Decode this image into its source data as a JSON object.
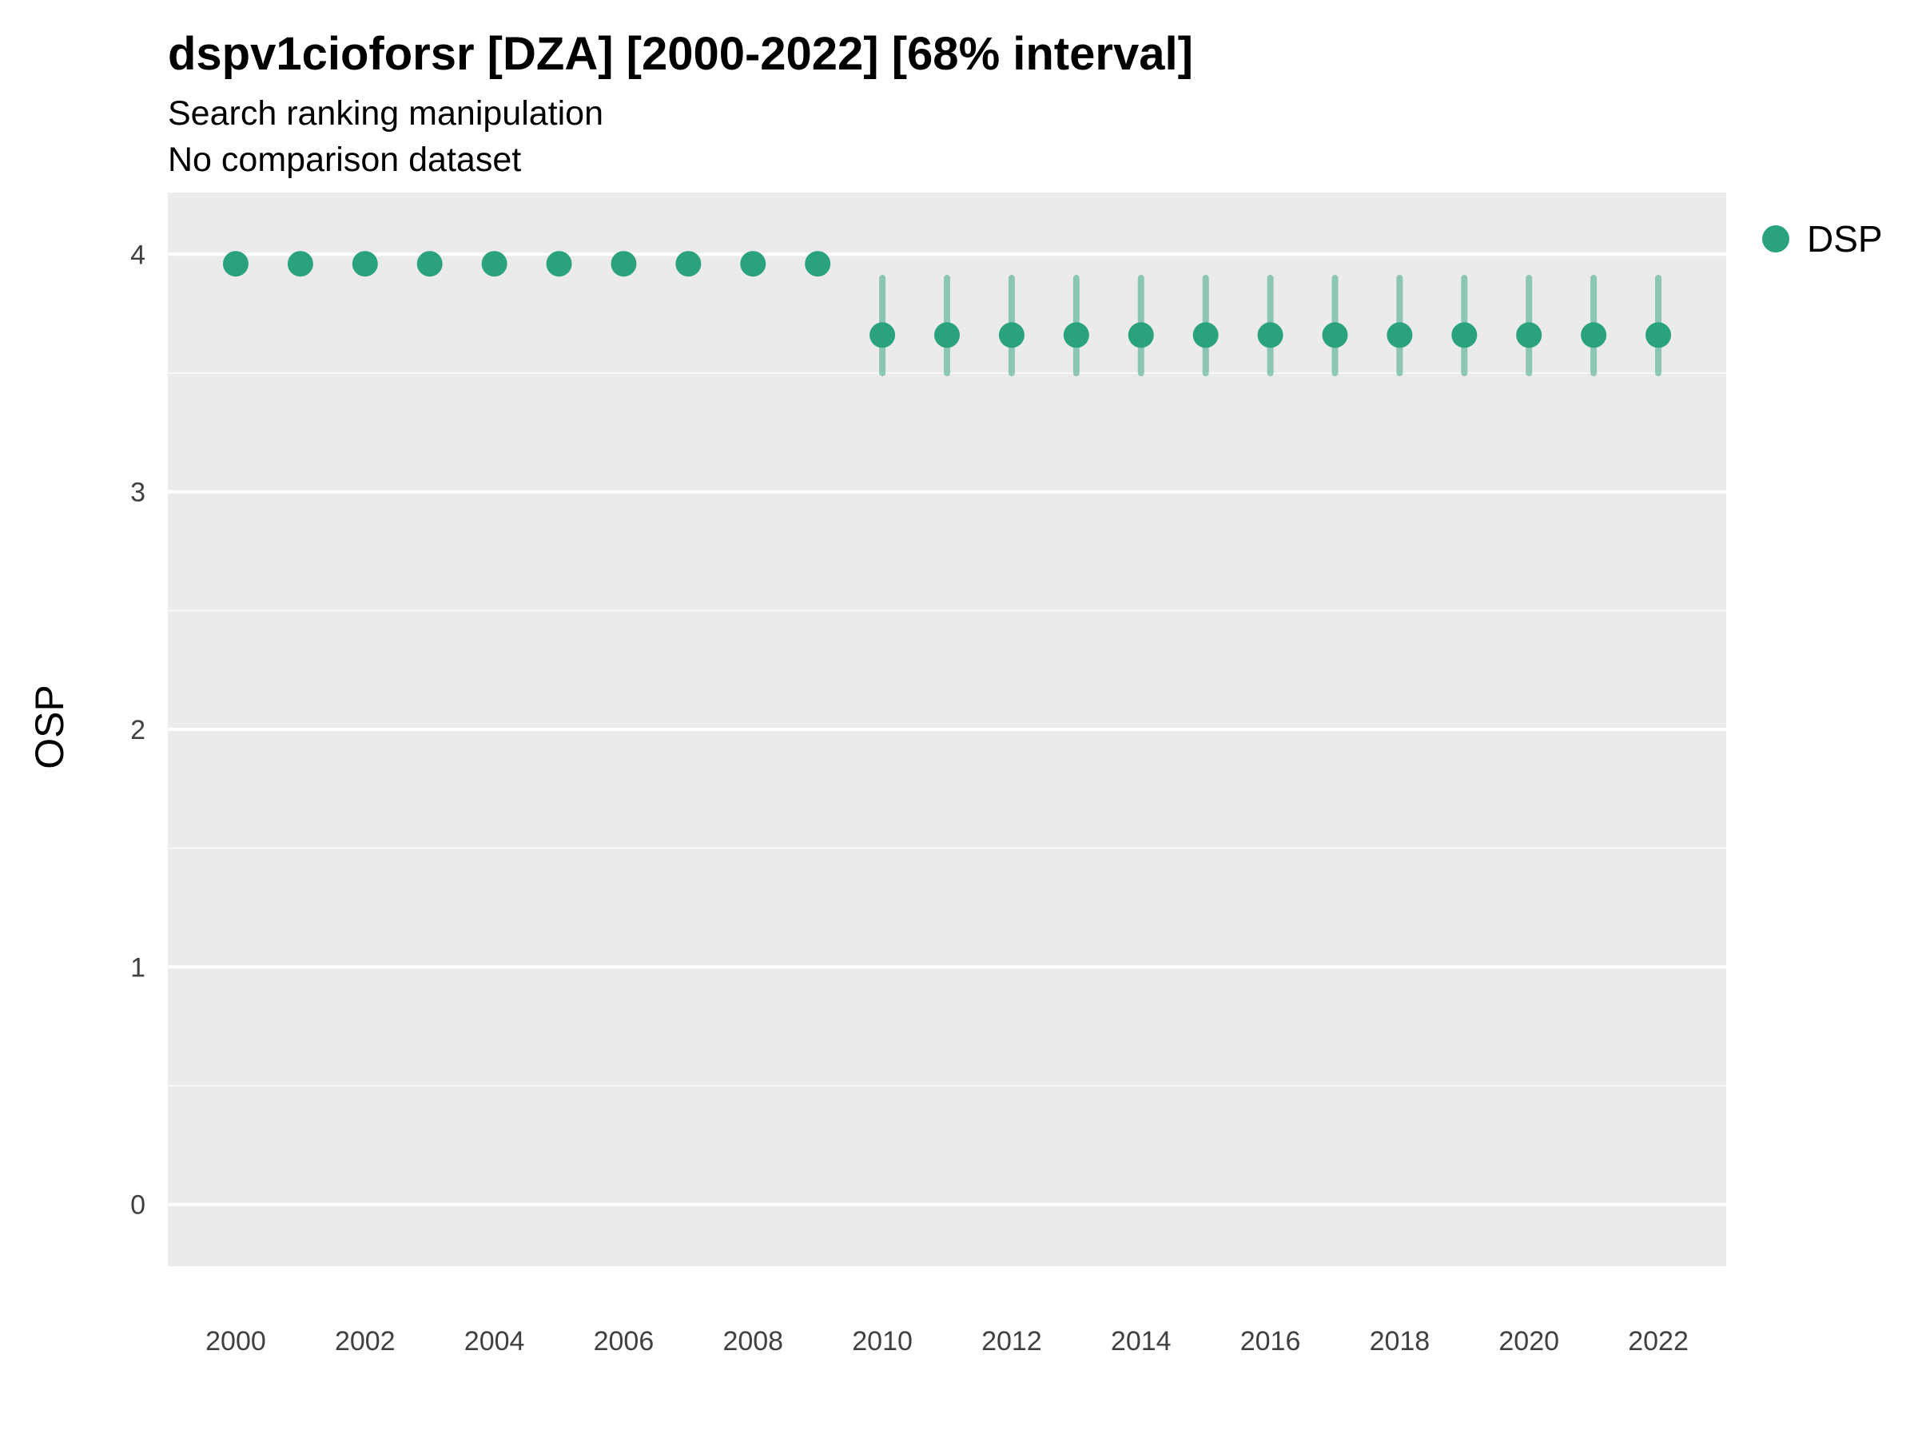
{
  "header": {
    "title": "dspv1cioforsr [DZA] [2000-2022] [68% interval]",
    "subtitle": "Search ranking manipulation",
    "note": "No comparison dataset"
  },
  "legend": {
    "items": [
      {
        "label": "DSP",
        "color": "#2BA27E"
      }
    ]
  },
  "colors": {
    "panel_background": "#EBEBEB",
    "gridline": "#FFFFFF",
    "point": "#2BA27E",
    "interval": "rgba(43,162,126,0.5)",
    "tick_label": "#404040"
  },
  "chart_data": {
    "type": "scatter",
    "title": "dspv1cioforsr [DZA] [2000-2022] [68% interval]",
    "subtitle": "Search ranking manipulation",
    "note": "No comparison dataset",
    "xlabel": "",
    "ylabel": "OSP",
    "interval_label": "68% interval",
    "legend_position": "right-top",
    "grid": "horizontal",
    "ylim": [
      -0.26,
      4.26
    ],
    "xlim": [
      1998.95,
      2023.05
    ],
    "y_ticks": [
      0,
      1,
      2,
      3,
      4
    ],
    "x_ticks": [
      2000,
      2002,
      2004,
      2006,
      2008,
      2010,
      2012,
      2014,
      2016,
      2018,
      2020,
      2022
    ],
    "series": [
      {
        "name": "DSP",
        "color": "#2BA27E",
        "interval_color": "rgba(43,162,126,0.5)",
        "points": [
          {
            "x": 2000,
            "y": 3.96
          },
          {
            "x": 2001,
            "y": 3.96
          },
          {
            "x": 2002,
            "y": 3.96
          },
          {
            "x": 2003,
            "y": 3.96
          },
          {
            "x": 2004,
            "y": 3.96
          },
          {
            "x": 2005,
            "y": 3.96
          },
          {
            "x": 2006,
            "y": 3.96
          },
          {
            "x": 2007,
            "y": 3.96
          },
          {
            "x": 2008,
            "y": 3.96
          },
          {
            "x": 2009,
            "y": 3.96
          },
          {
            "x": 2010,
            "y": 3.66,
            "lo": 3.5,
            "hi": 3.9
          },
          {
            "x": 2011,
            "y": 3.66,
            "lo": 3.5,
            "hi": 3.9
          },
          {
            "x": 2012,
            "y": 3.66,
            "lo": 3.5,
            "hi": 3.9
          },
          {
            "x": 2013,
            "y": 3.66,
            "lo": 3.5,
            "hi": 3.9
          },
          {
            "x": 2014,
            "y": 3.66,
            "lo": 3.5,
            "hi": 3.9
          },
          {
            "x": 2015,
            "y": 3.66,
            "lo": 3.5,
            "hi": 3.9
          },
          {
            "x": 2016,
            "y": 3.66,
            "lo": 3.5,
            "hi": 3.9
          },
          {
            "x": 2017,
            "y": 3.66,
            "lo": 3.5,
            "hi": 3.9
          },
          {
            "x": 2018,
            "y": 3.66,
            "lo": 3.5,
            "hi": 3.9
          },
          {
            "x": 2019,
            "y": 3.66,
            "lo": 3.5,
            "hi": 3.9
          },
          {
            "x": 2020,
            "y": 3.66,
            "lo": 3.5,
            "hi": 3.9
          },
          {
            "x": 2021,
            "y": 3.66,
            "lo": 3.5,
            "hi": 3.9
          },
          {
            "x": 2022,
            "y": 3.66,
            "lo": 3.5,
            "hi": 3.9
          }
        ]
      }
    ]
  }
}
